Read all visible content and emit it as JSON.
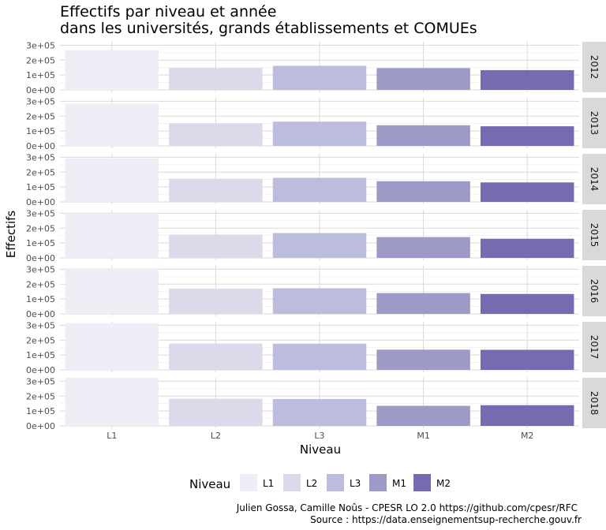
{
  "chart_data": {
    "type": "bar",
    "title_lines": [
      "Effectifs par niveau et année",
      "dans les universités, grands établissements et COMUEs"
    ],
    "xlabel": "Niveau",
    "ylabel": "Effectifs",
    "categories": [
      "L1",
      "L2",
      "L3",
      "M1",
      "M2"
    ],
    "y_ticks": [
      "0e+00",
      "1e+05",
      "2e+05",
      "3e+05"
    ],
    "y_tick_values": [
      0,
      100000,
      200000,
      300000
    ],
    "ylim": [
      0,
      300000
    ],
    "facets": [
      {
        "year": "2012",
        "values": [
          268000,
          148000,
          162000,
          147000,
          133000
        ]
      },
      {
        "year": "2013",
        "values": [
          284000,
          152000,
          163000,
          139000,
          132000
        ]
      },
      {
        "year": "2014",
        "values": [
          293000,
          156000,
          162000,
          139000,
          131000
        ]
      },
      {
        "year": "2015",
        "values": [
          300000,
          157000,
          167000,
          140000,
          129000
        ]
      },
      {
        "year": "2016",
        "values": [
          307000,
          170000,
          172000,
          140000,
          134000
        ]
      },
      {
        "year": "2017",
        "values": [
          314000,
          177000,
          176000,
          136000,
          135000
        ]
      },
      {
        "year": "2018",
        "values": [
          326000,
          182000,
          181000,
          135000,
          139000
        ]
      }
    ],
    "colors": {
      "L1": "#efedf5",
      "L2": "#dadaeb",
      "L3": "#bcbddc",
      "M1": "#9e9ac8",
      "M2": "#756bb1"
    },
    "grid": true,
    "legend": {
      "title": "Niveau",
      "position": "bottom"
    },
    "caption_lines": [
      "Julien Gossa, Camille Noûs - CPESR LO 2.0 https://github.com/cpesr/RFC",
      "Source : https://data.enseignementsup-recherche.gouv.fr"
    ]
  }
}
